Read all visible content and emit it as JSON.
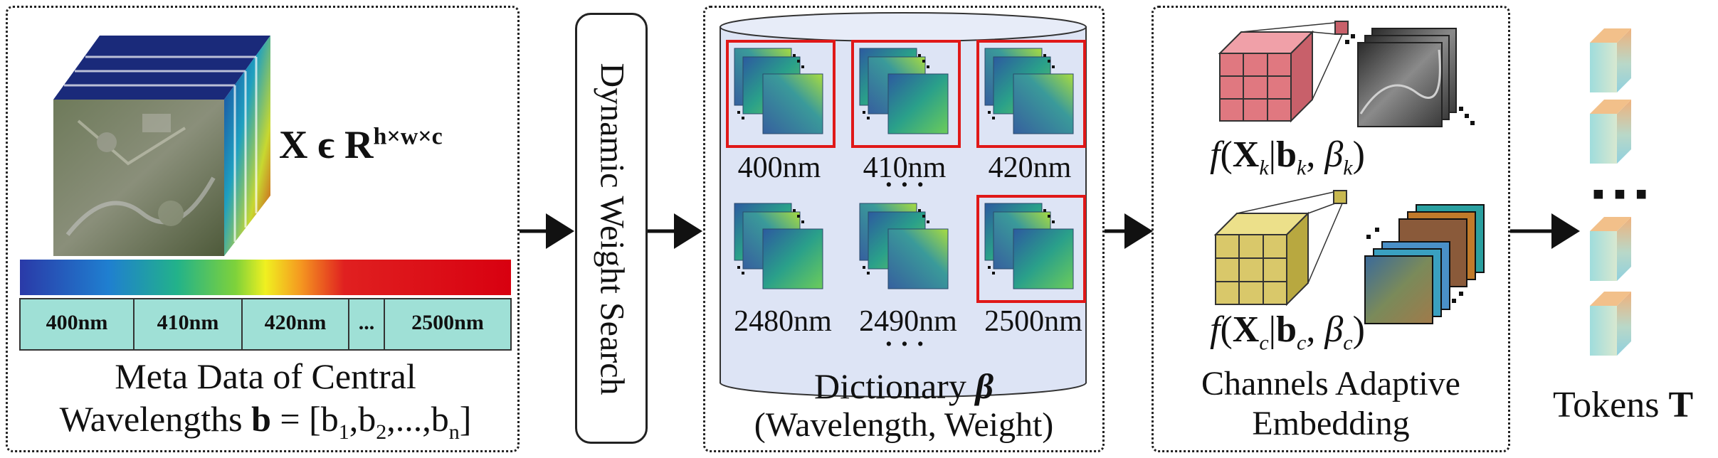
{
  "metadata_panel": {
    "equation": {
      "main": "X ϵ R",
      "sup": "h×w×c"
    },
    "band_labels": [
      "400nm",
      "410nm",
      "420nm",
      "...",
      "2500nm"
    ],
    "caption_line1": "Meta Data of Central",
    "caption_line2": {
      "prefix": "Wavelengths ",
      "bold": "b",
      "rest": " = [b",
      "s1": "1",
      "c1": ",b",
      "s2": "2",
      "c2": ",...,b",
      "sn": "n",
      "end": "]"
    }
  },
  "search_panel": {
    "label": "Dynamic Weight Search"
  },
  "dictionary_panel": {
    "wavelength_labels": [
      "400nm",
      "410nm",
      "420nm",
      "2480nm",
      "2490nm",
      "2500nm"
    ],
    "ellipsis_middle": "· · ·",
    "ellipsis_bottom": "· · ·",
    "caption_line1": {
      "text": "Dictionary ",
      "symbol": "β"
    },
    "caption_line2": "(Wavelength, Weight)"
  },
  "embedding_panel": {
    "formula_k": {
      "f": "f",
      "open": "(",
      "X": "X",
      "sub": "k",
      "bar": "|",
      "b": "b",
      "bsub": "k",
      "sep": ", ",
      "beta": "β",
      "betasub": "k",
      "close": ")"
    },
    "formula_c": {
      "f": "f",
      "open": "(",
      "X": "X",
      "sub": "c",
      "bar": "|",
      "b": "b",
      "bsub": "c",
      "sep": ", ",
      "beta": "β",
      "betasub": "c",
      "close": ")"
    },
    "caption_line1": "Channels Adaptive",
    "caption_line2": "Embedding"
  },
  "tokens_panel": {
    "caption": {
      "text": "Tokens ",
      "bold": "T"
    },
    "ellipsis": "■ ■ ■"
  },
  "colors": {
    "panel_border": "#222222",
    "band_fill": "#9fe0d6",
    "dictionary_fill": "#dde4f5",
    "highlight_box": "#e01818",
    "cube_red": "#e07880",
    "cube_yellow": "#d9c86a"
  }
}
